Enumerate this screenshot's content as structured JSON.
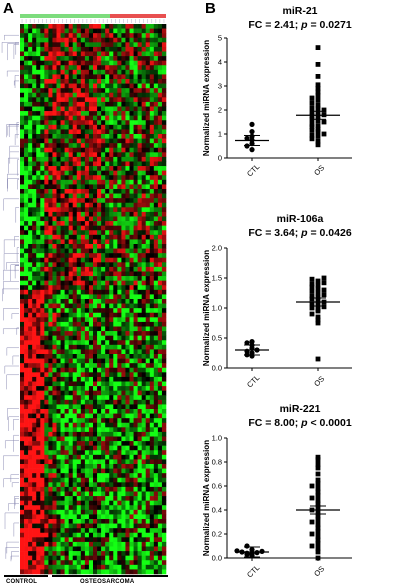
{
  "panels": {
    "a_label": "A",
    "b_label": "B"
  },
  "heatmap": {
    "group_labels": [
      "CONTROL",
      "OSTEOSARCOMA"
    ],
    "colors": {
      "high": "#ff2020",
      "low": "#20ff20",
      "mid": "#000000",
      "control_bar": "#7ddc7d",
      "os_bar": "#e85050"
    }
  },
  "chart_data": [
    {
      "type": "scatter",
      "title": "miR-21",
      "subtitle": {
        "fc": "FC = 2.41; ",
        "p_italic": "p",
        "rest": " = 0.0271"
      },
      "ylabel": "Normalized miRNA expression",
      "categories": [
        "CTL",
        "OS"
      ],
      "ylim": [
        0,
        5
      ],
      "yticks": [
        0,
        1,
        2,
        3,
        4,
        5
      ],
      "groups": [
        {
          "name": "CTL",
          "marker": "circle",
          "mean": 0.73,
          "values": [
            0.35,
            0.5,
            0.6,
            0.75,
            0.82,
            0.9,
            1.1,
            1.4
          ]
        },
        {
          "name": "OS",
          "marker": "square",
          "mean": 1.78,
          "values": [
            0.55,
            0.7,
            0.8,
            0.9,
            0.95,
            1.0,
            1.1,
            1.15,
            1.2,
            1.3,
            1.35,
            1.4,
            1.5,
            1.55,
            1.6,
            1.7,
            1.75,
            1.8,
            1.85,
            1.9,
            2.0,
            2.05,
            2.1,
            2.2,
            2.3,
            2.4,
            2.5,
            2.6,
            2.75,
            2.9,
            3.05,
            3.4,
            3.9,
            4.6
          ]
        }
      ]
    },
    {
      "type": "scatter",
      "title": "miR-106a",
      "subtitle": {
        "fc": "FC = 3.64; ",
        "p_italic": "p",
        "rest": " = 0.0426"
      },
      "ylabel": "Normalized miRNA expression",
      "categories": [
        "CTL",
        "OS"
      ],
      "ylim": [
        0,
        2.0
      ],
      "yticks": [
        0.0,
        0.5,
        1.0,
        1.5,
        2.0
      ],
      "ytick_labels": [
        "0.0",
        "0.5",
        "1.0",
        "1.5",
        "2.0"
      ],
      "groups": [
        {
          "name": "CTL",
          "marker": "circle",
          "mean": 0.3,
          "values": [
            0.2,
            0.22,
            0.25,
            0.28,
            0.3,
            0.33,
            0.38,
            0.42,
            0.44
          ]
        },
        {
          "name": "OS",
          "marker": "square",
          "mean": 1.1,
          "values": [
            0.15,
            0.75,
            0.8,
            0.85,
            0.9,
            0.95,
            0.98,
            1.0,
            1.02,
            1.05,
            1.07,
            1.1,
            1.12,
            1.15,
            1.18,
            1.2,
            1.22,
            1.25,
            1.28,
            1.3,
            1.32,
            1.35,
            1.38,
            1.4,
            1.42,
            1.45,
            1.48,
            1.5
          ]
        }
      ]
    },
    {
      "type": "scatter",
      "title": "miR-221",
      "subtitle": {
        "fc": "FC = 8.00; ",
        "p_italic": "p",
        "rest": " < 0.0001"
      },
      "ylabel": "Normalized miRNA expression",
      "categories": [
        "CTL",
        "OS"
      ],
      "ylim": [
        0,
        1.0
      ],
      "yticks": [
        0.0,
        0.2,
        0.4,
        0.6,
        0.8,
        1.0
      ],
      "ytick_labels": [
        "0.0",
        "0.2",
        "0.4",
        "0.6",
        "0.8",
        "1.0"
      ],
      "groups": [
        {
          "name": "CTL",
          "marker": "circle",
          "mean": 0.05,
          "values": [
            0.02,
            0.03,
            0.035,
            0.04,
            0.045,
            0.05,
            0.055,
            0.06,
            0.07,
            0.1
          ]
        },
        {
          "name": "OS",
          "marker": "square",
          "mean": 0.4,
          "values": [
            0.0,
            0.05,
            0.08,
            0.1,
            0.12,
            0.15,
            0.18,
            0.2,
            0.22,
            0.25,
            0.28,
            0.3,
            0.32,
            0.35,
            0.38,
            0.4,
            0.42,
            0.45,
            0.48,
            0.5,
            0.52,
            0.55,
            0.58,
            0.6,
            0.62,
            0.65,
            0.7,
            0.75,
            0.78,
            0.82,
            0.84
          ]
        }
      ]
    }
  ]
}
